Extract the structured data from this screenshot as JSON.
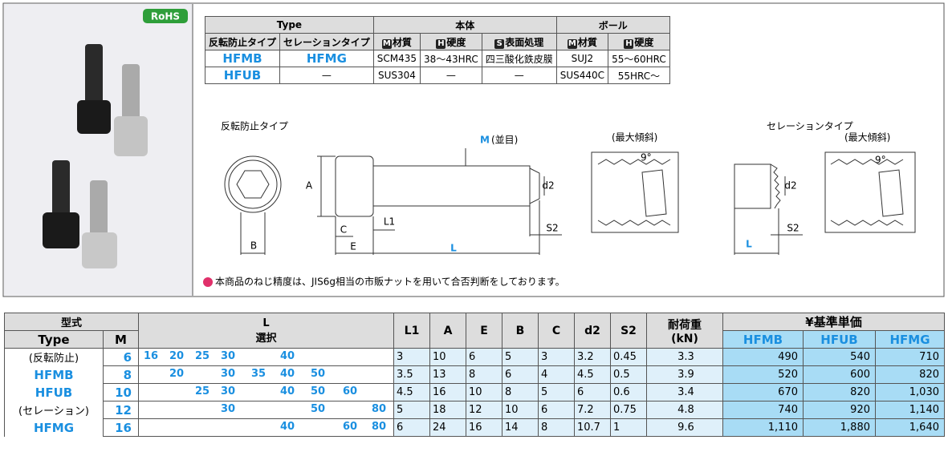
{
  "badge": "RoHS",
  "spec_table": {
    "header": [
      "Type",
      "本体",
      "ボール"
    ],
    "subheader": [
      {
        "text": "反転防止タイプ"
      },
      {
        "text": "セレーションタイプ"
      },
      {
        "icon": "M",
        "text": "材質"
      },
      {
        "icon": "H",
        "text": "硬度"
      },
      {
        "icon": "S",
        "text": "表面処理"
      },
      {
        "icon": "M",
        "text": "材質"
      },
      {
        "icon": "H",
        "text": "硬度"
      }
    ],
    "rows": [
      [
        "HFMB",
        "HFMG",
        "SCM435",
        "38～43HRC",
        "四三酸化鉄皮膜",
        "SUJ2",
        "55～60HRC"
      ],
      [
        "HFUB",
        "—",
        "SUS304",
        "—",
        "—",
        "SUS440C",
        "55HRC～"
      ]
    ]
  },
  "diagram": {
    "type_a": "反転防止タイプ",
    "type_b": "セレーションタイプ",
    "thread": "M",
    "thread_note": "(並目)",
    "max_tilt": "(最大傾斜)",
    "angle": "9°",
    "dims_a": [
      "A",
      "B",
      "C",
      "E",
      "L1",
      "L",
      "d2",
      "S2"
    ],
    "dims_b": [
      "L",
      "d2",
      "S2"
    ]
  },
  "note": "本商品のねじ精度は、JIS6g相当の市販ナットを用いて合否判断をしております。",
  "main_table": {
    "header": {
      "model": "型式",
      "type": "Type",
      "m": "M",
      "l": "L",
      "l_sub": "選択",
      "cols": [
        "L1",
        "A",
        "E",
        "B",
        "C",
        "d2",
        "S2"
      ],
      "load": "耐荷重",
      "load_unit": "(kN)",
      "price": "¥基準単価",
      "price_cols": [
        "HFMB",
        "HFUB",
        "HFMG"
      ]
    },
    "rows": [
      {
        "type": "(反転防止)",
        "m": "6",
        "l": [
          "16",
          "20",
          "25",
          "30",
          null,
          "40",
          null,
          null,
          null
        ],
        "cells": [
          "3",
          "10",
          "6",
          "5",
          "3",
          "3.2",
          "0.45"
        ],
        "load": "3.3",
        "prices": [
          "490",
          "540",
          "710"
        ]
      },
      {
        "type": "HFMB",
        "m": "8",
        "l": [
          null,
          "20",
          null,
          "30",
          "35",
          "40",
          "50",
          null,
          null
        ],
        "cells": [
          "3.5",
          "13",
          "8",
          "6",
          "4",
          "4.5",
          "0.5"
        ],
        "load": "3.9",
        "prices": [
          "520",
          "600",
          "820"
        ]
      },
      {
        "type": "HFUB",
        "m": "10",
        "l": [
          null,
          null,
          "25",
          "30",
          null,
          "40",
          "50",
          "60",
          null
        ],
        "cells": [
          "4.5",
          "16",
          "10",
          "8",
          "5",
          "6",
          "0.6"
        ],
        "load": "3.4",
        "prices": [
          "670",
          "820",
          "1,030"
        ]
      },
      {
        "type": "(セレーション)",
        "m": "12",
        "l": [
          null,
          null,
          null,
          "30",
          null,
          null,
          "50",
          null,
          "80"
        ],
        "cells": [
          "5",
          "18",
          "12",
          "10",
          "6",
          "7.2",
          "0.75"
        ],
        "load": "4.8",
        "prices": [
          "740",
          "920",
          "1,140"
        ]
      },
      {
        "type": "HFMG",
        "m": "16",
        "l": [
          null,
          null,
          null,
          null,
          null,
          "40",
          null,
          "60",
          "80"
        ],
        "cells": [
          "6",
          "24",
          "16",
          "14",
          "8",
          "10.7",
          "1"
        ],
        "load": "9.6",
        "prices": [
          "1,110",
          "1,880",
          "1,640"
        ]
      }
    ]
  }
}
